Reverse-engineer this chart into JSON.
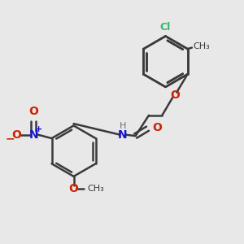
{
  "bg_color": "#e8e8e8",
  "bond_color": "#3a3a3a",
  "bond_width": 1.8,
  "cl_color": "#3cb371",
  "o_color": "#cc2200",
  "n_color": "#1414cc",
  "h_color": "#707070",
  "me_color": "#3a3a3a",
  "figsize": [
    3.0,
    3.0
  ],
  "dpi": 100,
  "xlim": [
    0,
    10
  ],
  "ylim": [
    0,
    10
  ]
}
